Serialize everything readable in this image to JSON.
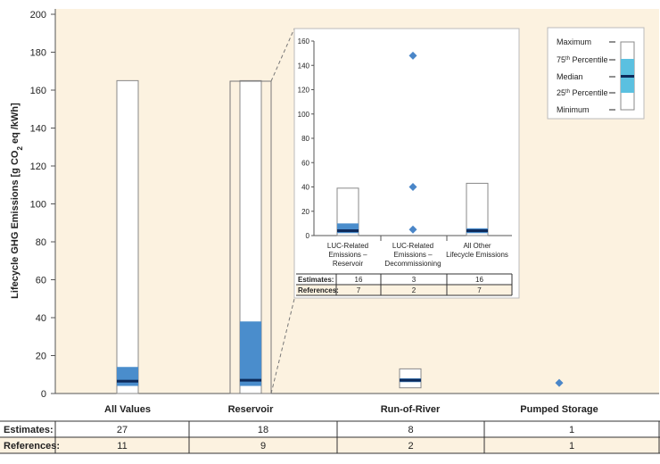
{
  "chart_data": {
    "type": "boxplot",
    "ylabel_main": "Lifecycle GHG Emissions [g CO",
    "ylabel_sub": "2",
    "ylabel_tail": " eq /kWh]",
    "ylim": [
      0,
      200
    ],
    "yticks": [
      0,
      20,
      40,
      60,
      80,
      100,
      120,
      140,
      160,
      180,
      200
    ],
    "colors": {
      "plot_bg": "#fcf2e0",
      "box_fill": "#4a8dcc",
      "median": "#0d2a5a",
      "marker": "#4a86c8",
      "legend_box": "#5bc0e0",
      "grid": "#999999"
    },
    "categories": [
      "All Values",
      "Reservoir",
      "Run-of-River",
      "Pumped Storage"
    ],
    "boxes": [
      {
        "category": "All Values",
        "min": 0,
        "q1": 4,
        "median": 6.5,
        "q3": 14,
        "max": 165
      },
      {
        "category": "Reservoir",
        "min": 0,
        "q1": 4,
        "median": 7,
        "q3": 38,
        "max": 165
      },
      {
        "category": "Run-of-River",
        "min": 3,
        "q1": 6,
        "median": 7,
        "q3": 8,
        "max": 13
      }
    ],
    "points": [
      {
        "category": "Pumped Storage",
        "value": 5.6
      }
    ],
    "table": {
      "row_labels": [
        "Estimates:",
        "References:"
      ],
      "estimates": [
        "27",
        "18",
        "8",
        "1"
      ],
      "references": [
        "11",
        "9",
        "2",
        "1"
      ]
    },
    "inset": {
      "ylim": [
        0,
        160
      ],
      "yticks": [
        0,
        20,
        40,
        60,
        80,
        100,
        120,
        140,
        160
      ],
      "categories": [
        [
          "LUC-Related",
          "Emissions –",
          "Reservoir"
        ],
        [
          "LUC-Related",
          "Emissions –",
          "Decommissioning"
        ],
        [
          "All Other",
          "Lifecycle Emissions"
        ]
      ],
      "boxes": [
        {
          "index": 0,
          "min": 0,
          "q1": 2,
          "median": 4,
          "q3": 10,
          "max": 39
        },
        {
          "index": 2,
          "min": 0,
          "q1": 2,
          "median": 4,
          "q3": 6,
          "max": 43
        }
      ],
      "points": [
        {
          "index": 1,
          "value": 5
        },
        {
          "index": 1,
          "value": 40
        },
        {
          "index": 1,
          "value": 148
        }
      ],
      "table": {
        "row_labels": [
          "Estimates:",
          "References:"
        ],
        "estimates": [
          "16",
          "3",
          "16"
        ],
        "references": [
          "7",
          "2",
          "7"
        ]
      }
    },
    "legend": {
      "items": [
        "Maximum",
        "75th Percentile",
        "Median",
        "25th Percentile",
        "Minimum"
      ],
      "sup_items": [
        {
          "prefix": "75",
          "sup": "th",
          "suffix": " Percentile"
        },
        {
          "prefix": "25",
          "sup": "th",
          "suffix": " Percentile"
        }
      ]
    }
  }
}
